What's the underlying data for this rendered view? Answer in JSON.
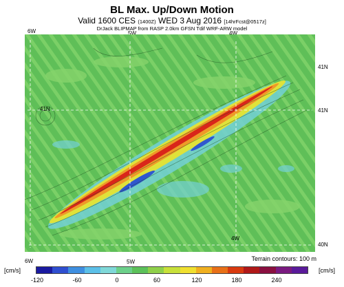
{
  "header": {
    "title": "BL Max. Up/Down Motion",
    "subtitle_main": "Valid 1600 CES",
    "subtitle_small": "(1400Z)",
    "subtitle_date": "WED 3 Aug 2016",
    "subtitle_fcst": "[14hrFcst@0517z]",
    "credit": "DrJack BLIPMAP from RASP 2.0km GFSN Tdif WRF-ARW model"
  },
  "coords": {
    "top_6w": "6W",
    "top_5w": "5W",
    "top_4w": "4W",
    "left_41n": "41N",
    "right_41n": "41N",
    "right_40n": "40N",
    "inner_4w": "4W",
    "bottom_6w": "6W",
    "bottom_5w": "5W"
  },
  "footer": {
    "terrain_note": "Terrain contours: 100 m",
    "unit_left": "[cm/s]",
    "unit_right": "[cm/s]",
    "ticks": [
      "-120",
      "-60",
      "0",
      "60",
      "120",
      "180",
      "240"
    ]
  },
  "colorbar_colors": [
    "#1a1aa0",
    "#2f4fd0",
    "#3f8fe0",
    "#5cc0e8",
    "#7fd8d8",
    "#6cd08a",
    "#5cc15a",
    "#8fd04a",
    "#c8e03a",
    "#f0e030",
    "#f0b020",
    "#e87018",
    "#d83a10",
    "#b01818",
    "#8a1040",
    "#7a1a80",
    "#5a1a9a"
  ],
  "map_colors": {
    "base": "#61c15c",
    "light": "#86d36c",
    "cyan": "#73d0d6",
    "yellow": "#dfe23a",
    "orange": "#ee9a28",
    "red": "#d9261a",
    "blue": "#2f57cf"
  }
}
